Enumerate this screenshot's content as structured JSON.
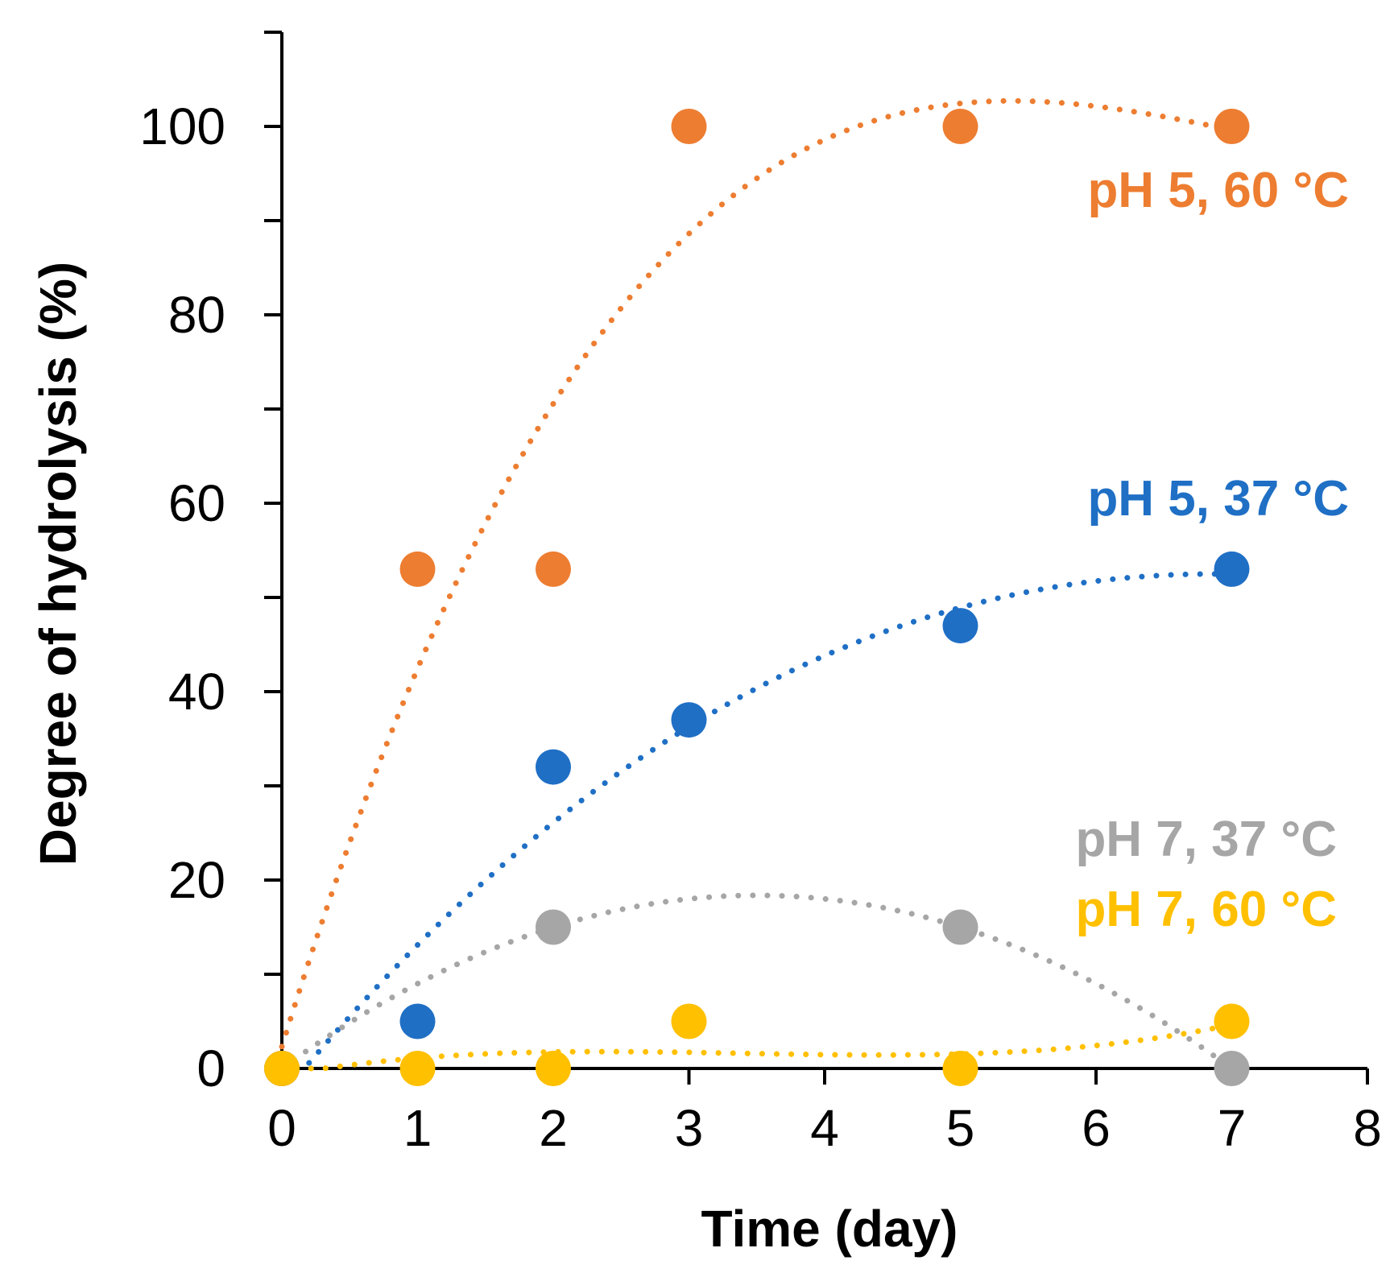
{
  "chart_data": {
    "type": "scatter",
    "title": "",
    "xlabel": "Time (day)",
    "ylabel": "Degree of hydrolysis (%)",
    "xlim": [
      0,
      8
    ],
    "ylim": [
      0,
      110
    ],
    "x_ticks": [
      0,
      1,
      2,
      3,
      4,
      5,
      6,
      7,
      8
    ],
    "y_tick_labels": [
      0,
      20,
      40,
      60,
      80,
      100
    ],
    "y_minor_ticks": [
      10,
      30,
      50,
      70,
      90,
      110
    ],
    "grid": false,
    "legend": "inline labels on right",
    "series": [
      {
        "name": "pH 5, 60 °C",
        "color": "#ED7D31",
        "x": [
          0,
          1,
          2,
          3,
          5,
          7
        ],
        "y": [
          0,
          53,
          53,
          100,
          100,
          100
        ],
        "trend": "polynomial-dotted"
      },
      {
        "name": "pH 5, 37 °C",
        "color": "#1F6FC5",
        "x": [
          0,
          1,
          2,
          3,
          5,
          7
        ],
        "y": [
          0,
          5,
          32,
          37,
          47,
          53
        ],
        "trend": "polynomial-dotted"
      },
      {
        "name": "pH 7, 37 °C",
        "color": "#A6A6A6",
        "x": [
          0,
          2,
          5,
          7
        ],
        "y": [
          0,
          15,
          15,
          0
        ],
        "trend": "polynomial-dotted"
      },
      {
        "name": "pH 7, 60 °C",
        "color": "#FFC000",
        "x": [
          0,
          1,
          2,
          3,
          5,
          7
        ],
        "y": [
          0,
          0,
          0,
          5,
          0,
          5
        ],
        "trend": "polynomial-dotted"
      }
    ]
  }
}
